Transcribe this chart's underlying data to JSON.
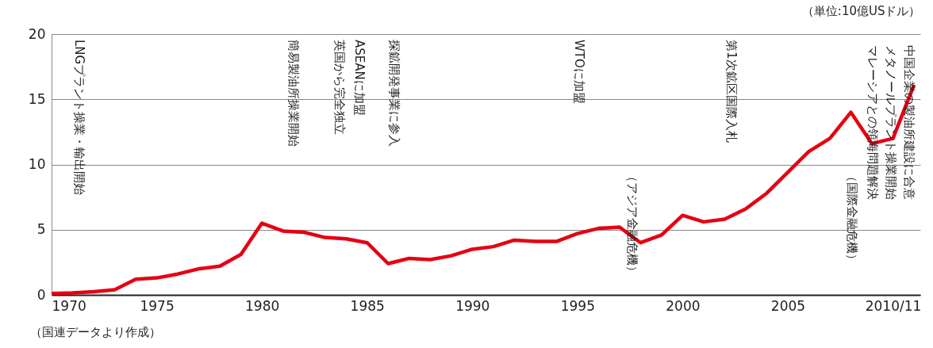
{
  "chart_data": {
    "type": "line",
    "ylabel": "（単位:10億USドル）",
    "x": [
      1970,
      1971,
      1972,
      1973,
      1974,
      1975,
      1976,
      1977,
      1978,
      1979,
      1980,
      1981,
      1982,
      1983,
      1984,
      1985,
      1986,
      1987,
      1988,
      1989,
      1990,
      1991,
      1992,
      1993,
      1994,
      1995,
      1996,
      1997,
      1998,
      1999,
      2000,
      2001,
      2002,
      2003,
      2004,
      2005,
      2006,
      2007,
      2008,
      2009,
      2010,
      2011
    ],
    "series": [
      {
        "color": "#e60012",
        "values": [
          0.1,
          0.15,
          0.25,
          0.4,
          1.2,
          1.3,
          1.6,
          2.0,
          2.2,
          3.1,
          5.5,
          4.9,
          4.8,
          4.4,
          4.3,
          4.0,
          2.4,
          2.8,
          2.7,
          3.0,
          3.5,
          3.7,
          4.2,
          4.1,
          4.1,
          4.7,
          5.1,
          5.2,
          4.0,
          4.6,
          6.1,
          5.6,
          5.8,
          6.6,
          7.8,
          9.4,
          11.0,
          12.0,
          14.0,
          11.6,
          12.0,
          16.1
        ]
      }
    ],
    "xlim": [
      1970,
      2011.3
    ],
    "ylim": [
      0,
      20
    ],
    "xticks": [
      1970,
      1975,
      1980,
      1985,
      1990,
      1995,
      2000,
      2005,
      {
        "value": 2010,
        "label": "2010/11"
      }
    ],
    "yticks": [
      0,
      5,
      10,
      15,
      20
    ],
    "grid": "y",
    "line_style": "solid",
    "annotations": [
      "LNGプラント操業・輸出開始",
      "簡易製油所操業開始",
      "英国から完全独立",
      "ASEANに加盟",
      "探鉱開発事業に参入",
      "WTOに加盟",
      "（アジア金融危機）",
      "第1次鉱区国際入札",
      "（国際金融危機）",
      "マレーシアとの領海問題解決",
      "メタノールプラント操業開始",
      "中国企業の製油所建設に合意",
      "（国連データより作成）"
    ]
  }
}
